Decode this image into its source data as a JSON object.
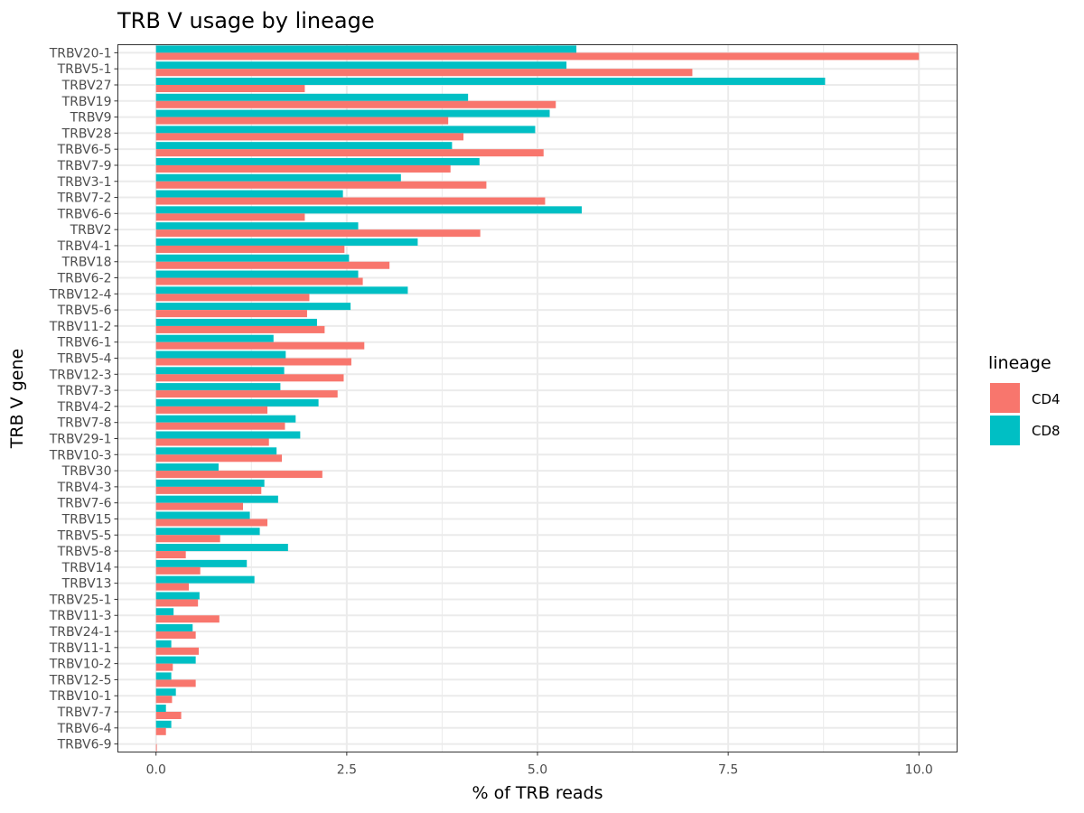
{
  "colors": {
    "CD4": "#F8766D",
    "CD8": "#00BFC4",
    "grid": "#ebebeb",
    "panel_border": "#333333"
  },
  "legend": {
    "title": "lineage",
    "position": "right"
  },
  "chart_data": {
    "type": "bar",
    "orientation": "horizontal",
    "title": "TRB V usage by lineage",
    "xlabel": "% of TRB reads",
    "ylabel": "TRB V gene",
    "xlim": [
      -0.5,
      10.5
    ],
    "xticks": [
      0,
      2.5,
      5,
      7.5,
      10
    ],
    "xtick_labels": [
      "0.0",
      "2.5",
      "5.0",
      "7.5",
      "10.0"
    ],
    "grid": true,
    "categories": [
      "TRBV20-1",
      "TRBV5-1",
      "TRBV27",
      "TRBV19",
      "TRBV9",
      "TRBV28",
      "TRBV6-5",
      "TRBV7-9",
      "TRBV3-1",
      "TRBV7-2",
      "TRBV6-6",
      "TRBV2",
      "TRBV4-1",
      "TRBV18",
      "TRBV6-2",
      "TRBV12-4",
      "TRBV5-6",
      "TRBV11-2",
      "TRBV6-1",
      "TRBV5-4",
      "TRBV12-3",
      "TRBV7-3",
      "TRBV4-2",
      "TRBV7-8",
      "TRBV29-1",
      "TRBV10-3",
      "TRBV30",
      "TRBV4-3",
      "TRBV7-6",
      "TRBV15",
      "TRBV5-5",
      "TRBV5-8",
      "TRBV14",
      "TRBV13",
      "TRBV25-1",
      "TRBV11-3",
      "TRBV24-1",
      "TRBV11-1",
      "TRBV10-2",
      "TRBV12-5",
      "TRBV10-1",
      "TRBV7-7",
      "TRBV6-4",
      "TRBV6-9"
    ],
    "series": [
      {
        "name": "CD4",
        "values": [
          10.0,
          7.03,
          1.95,
          5.24,
          3.83,
          4.03,
          5.08,
          3.86,
          4.33,
          5.1,
          1.95,
          4.25,
          2.47,
          3.06,
          2.71,
          2.01,
          1.98,
          2.21,
          2.73,
          2.56,
          2.46,
          2.38,
          1.46,
          1.69,
          1.48,
          1.65,
          2.18,
          1.38,
          1.14,
          1.46,
          0.84,
          0.39,
          0.58,
          0.43,
          0.55,
          0.83,
          0.52,
          0.56,
          0.22,
          0.52,
          0.21,
          0.33,
          0.13,
          0.01
        ]
      },
      {
        "name": "CD8",
        "values": [
          5.51,
          5.38,
          8.77,
          4.09,
          5.16,
          4.97,
          3.88,
          4.24,
          3.21,
          2.45,
          5.58,
          2.65,
          3.43,
          2.53,
          2.65,
          3.3,
          2.55,
          2.11,
          1.54,
          1.7,
          1.68,
          1.63,
          2.13,
          1.83,
          1.89,
          1.58,
          0.82,
          1.42,
          1.6,
          1.23,
          1.36,
          1.73,
          1.19,
          1.29,
          0.57,
          0.23,
          0.48,
          0.2,
          0.52,
          0.2,
          0.26,
          0.13,
          0.2,
          0.0
        ]
      }
    ]
  }
}
